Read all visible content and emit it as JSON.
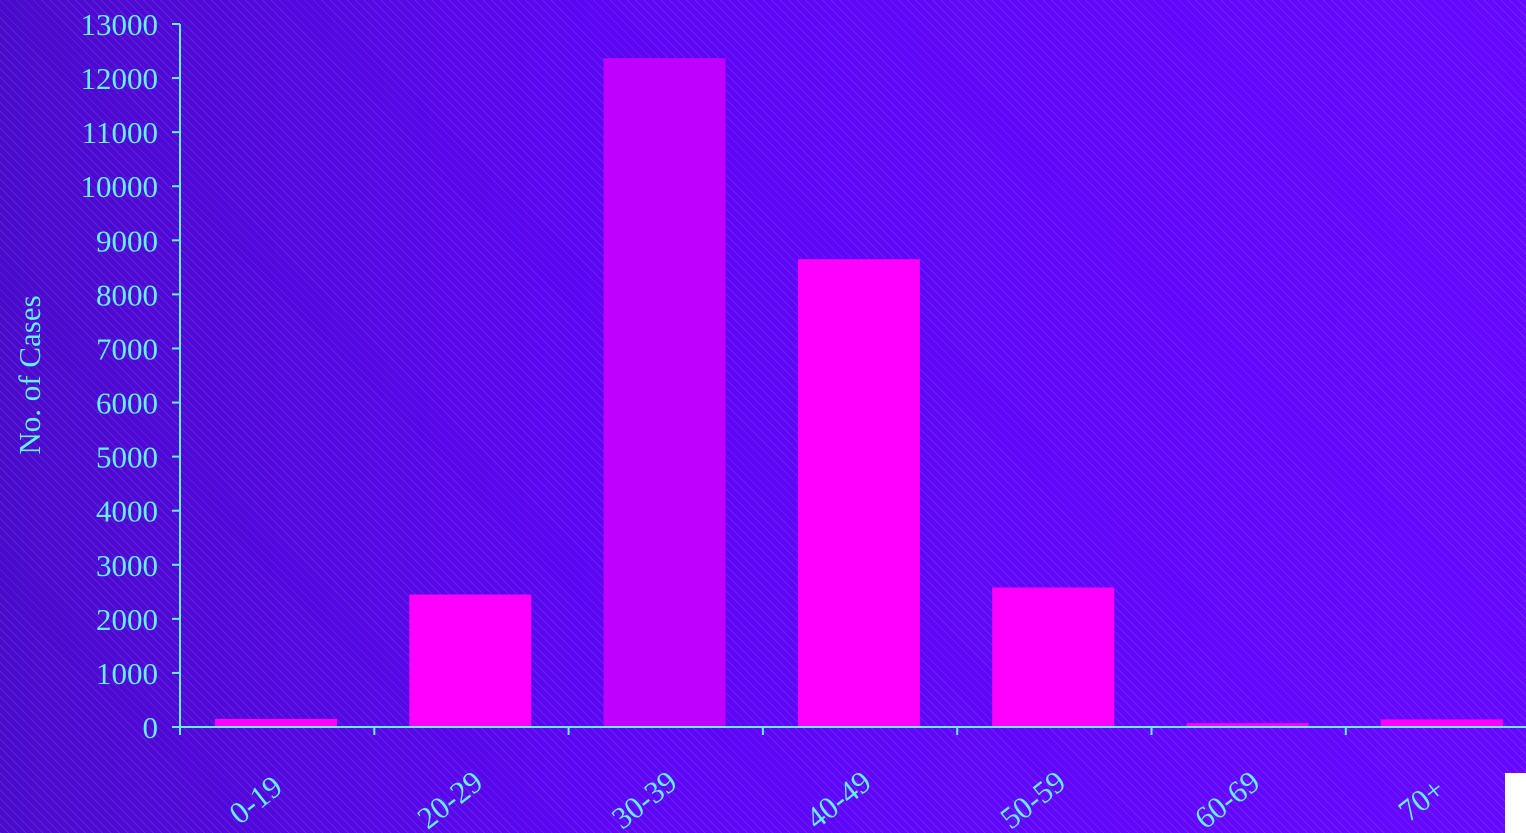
{
  "chart_data": {
    "type": "bar",
    "title": "",
    "xlabel": "",
    "ylabel": "No. of Cases",
    "categories": [
      "0-19",
      "20-29",
      "30-39",
      "40-49",
      "50-59",
      "60-69",
      "70+"
    ],
    "values": [
      150,
      2450,
      12370,
      8650,
      2580,
      70,
      140
    ],
    "ylim": [
      0,
      13000
    ],
    "yticks": [
      "0",
      "1000",
      "2000",
      "3000",
      "4000",
      "5000",
      "6000",
      "7000",
      "8000",
      "9000",
      "10000",
      "11000",
      "12000",
      "13000"
    ],
    "grid": false,
    "legend": "none",
    "colors": {
      "bar": "#ff00ff",
      "bar_highlight": "#c000ff",
      "axis": "#63f0ff",
      "text": "#63f0ff",
      "background": "#5a08ee"
    },
    "highlight_index": 2
  }
}
